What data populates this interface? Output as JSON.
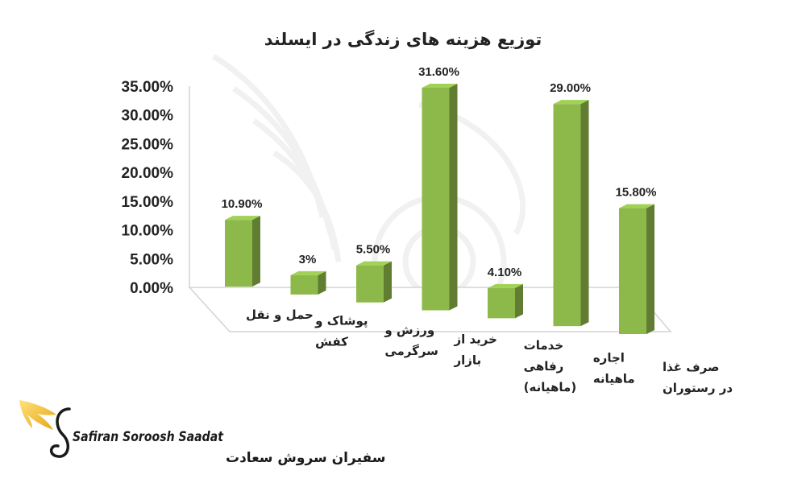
{
  "chart_data": {
    "type": "bar",
    "title": "توزیع هزینه های زندگی در ایسلند",
    "categories": [
      [
        "حمل و نقل"
      ],
      [
        "پوشاک و",
        "کفش"
      ],
      [
        "ورزش و",
        "سرگرمی"
      ],
      [
        "خرید از",
        "بازار"
      ],
      [
        "خدمات",
        "رفاهی",
        "(ماهیانه)"
      ],
      [
        "اجاره",
        "ماهیانه"
      ],
      [
        "صرف غذا",
        "در رستوران"
      ]
    ],
    "values": [
      10.9,
      3,
      5.5,
      31.6,
      4.1,
      29.0,
      15.8
    ],
    "data_labels": [
      "10.90%",
      "3%",
      "5.50%",
      "31.60%",
      "4.10%",
      "29.00%",
      "15.80%"
    ],
    "y_ticks": [
      "0.00%",
      "5.00%",
      "10.00%",
      "15.00%",
      "20.00%",
      "25.00%",
      "30.00%",
      "35.00%"
    ],
    "ylim": [
      0,
      35
    ],
    "grid": false,
    "legend": "none",
    "bar_color": "#8DB84A"
  },
  "logo": {
    "name_en": "Safiran Soroosh Saadat",
    "name_fa": "سفیران سروش سعادت",
    "accent_color": "#F2C12E"
  }
}
